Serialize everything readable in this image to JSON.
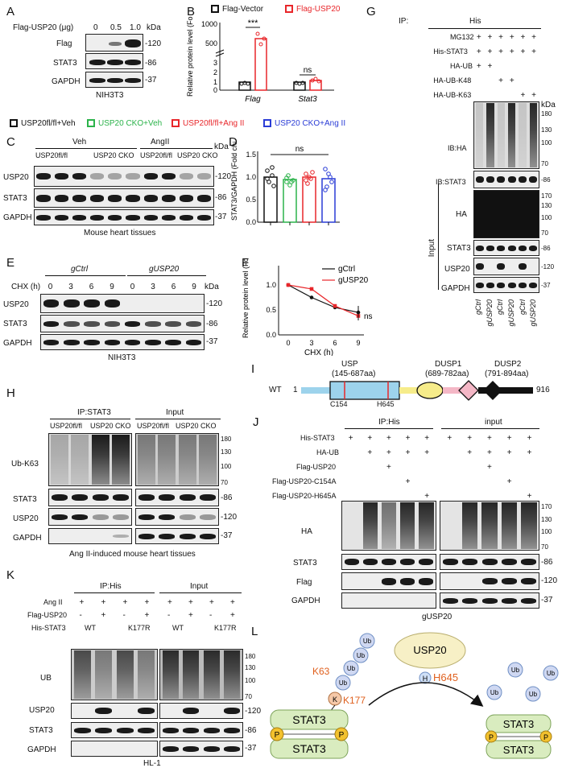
{
  "panels": {
    "A": "A",
    "B": "B",
    "C": "C",
    "D": "D",
    "E": "E",
    "F": "F",
    "G": "G",
    "H": "H",
    "I": "I",
    "J": "J",
    "K": "K",
    "L": "L"
  },
  "A": {
    "condition": "Flag-USP20 (μg)",
    "doses": [
      "0",
      "0.5",
      "1.0"
    ],
    "rows": [
      "Flag",
      "STAT3",
      "GAPDH"
    ],
    "mw": [
      "-120",
      "-86",
      "-37"
    ],
    "kda": "kDa",
    "cell": "NIH3T3"
  },
  "B": {
    "legend": [
      "Flag-Vector",
      "Flag-USP20"
    ],
    "ylabel": "Relative protein level (Fold change)",
    "groups": [
      "Flag",
      "Stat3"
    ],
    "sig": [
      "***",
      "ns"
    ],
    "ticks": [
      "0",
      "1",
      "2",
      "3",
      "500",
      "1000"
    ],
    "colors": {
      "vector": "#111111",
      "usp20": "#e8262a"
    }
  },
  "chart_data": {
    "type": "bar",
    "categories": [
      "Flag",
      "Stat3"
    ],
    "series": [
      {
        "name": "Flag-Vector",
        "values": [
          1.0,
          1.0
        ]
      },
      {
        "name": "Flag-USP20",
        "values": [
          680,
          1.4
        ]
      }
    ]
  },
  "groups_legend": [
    "USP20fl/fl+Veh",
    "USP20 CKO+Veh",
    "USP20fl/fl+Ang II",
    "USP20 CKO+Ang II"
  ],
  "C": {
    "treat": [
      "Veh",
      "AngII"
    ],
    "geno": [
      "USP20fl/fl",
      "USP20 CKO",
      "USP20fl/fl",
      "USP20 CKO"
    ],
    "rows": [
      "USP20",
      "STAT3",
      "GAPDH"
    ],
    "mw": [
      "-120",
      "-86",
      "-37"
    ],
    "kda": "kDa",
    "caption": "Mouse heart tissues"
  },
  "D": {
    "ylabel": "STAT3/GAPDH (Fold change)",
    "sig": "ns",
    "ticks": [
      "0.0",
      "0.5",
      "1.0",
      "1.5"
    ],
    "means": [
      1.0,
      0.95,
      1.0,
      0.97
    ]
  },
  "E": {
    "groups": [
      "gCtrl",
      "gUSP20"
    ],
    "chx": "CHX (h)",
    "times": [
      "0",
      "3",
      "6",
      "9",
      "0",
      "3",
      "6",
      "9"
    ],
    "rows": [
      "USP20",
      "STAT3",
      "GAPDH"
    ],
    "mw": [
      "-120",
      "-86",
      "-37"
    ],
    "kda": "kDa",
    "cell": "NIH3T3"
  },
  "F": {
    "ylabel": "Relative protein level (Fold change)",
    "xlabel": "CHX (h)",
    "legend": [
      "gCtrl",
      "gUSP20"
    ],
    "xticks": [
      "0",
      "3",
      "6",
      "9"
    ],
    "yticks": [
      "0.0",
      "0.5",
      "1.0"
    ],
    "sig": "ns",
    "gCtrl": [
      1.0,
      0.75,
      0.55,
      0.45
    ],
    "gUSP20": [
      1.0,
      0.92,
      0.58,
      0.38
    ]
  },
  "G": {
    "ip": "IP:",
    "ip_target": "His",
    "conds": [
      "MG132",
      "His-STAT3",
      "HA-UB",
      "HA-UB-K48",
      "HA-UB-K63"
    ],
    "marks": [
      [
        "+",
        "+",
        "+",
        "+",
        "+",
        "+"
      ],
      [
        "+",
        "+",
        "+",
        "+",
        "+",
        "+"
      ],
      [
        "+",
        "+",
        "",
        "",
        "",
        ""
      ],
      [
        "",
        "",
        "+",
        "+",
        "",
        ""
      ],
      [
        "",
        "",
        "",
        "",
        "+",
        "+"
      ]
    ],
    "rows": [
      "IB:HA",
      "IB:STAT3",
      "HA",
      "STAT3",
      "USP20",
      "GAPDH"
    ],
    "input": "Input",
    "mw_ha": [
      "180",
      "130",
      "100",
      "70"
    ],
    "mw_in": [
      "170",
      "130",
      "100",
      "70"
    ],
    "mw": [
      "-86",
      "-86",
      "-120",
      "-37"
    ],
    "kda": "kDa",
    "lanes": [
      "gCtrl",
      "gUSP20",
      "gCtrl",
      "gUSP20",
      "gCtrl",
      "gUSP20"
    ]
  },
  "H": {
    "ip": "IP:STAT3",
    "input": "Input",
    "geno": [
      "USP20fl/fl",
      "USP20 CKO",
      "USP20fl/fl",
      "USP20 CKO"
    ],
    "rows": [
      "Ub-K63",
      "STAT3",
      "USP20",
      "GAPDH"
    ],
    "mw": [
      "180",
      "130",
      "100",
      "70",
      "-86",
      "-120",
      "-37"
    ],
    "caption": "Ang II-induced mouse heart tissues"
  },
  "I": {
    "wt": "WT",
    "start": "1",
    "end": "916",
    "usp": "USP",
    "usp_range": "(145-687aa)",
    "dusp1": "DUSP1",
    "dusp1_range": "(689-782aa)",
    "dusp2": "DUSP2",
    "dusp2_range": "(791-894aa)",
    "c154": "C154",
    "h645": "H645"
  },
  "J": {
    "ip": "IP:His",
    "input": "input",
    "conds": [
      "His-STAT3",
      "HA-UB",
      "Flag-USP20",
      "Flag-USP20-C154A",
      "Flag-USP20-H645A"
    ],
    "marks": [
      [
        "+",
        "+",
        "+",
        "+",
        "+"
      ],
      [
        "",
        "+",
        "+",
        "+",
        "+"
      ],
      [
        "",
        "",
        "+",
        "",
        ""
      ],
      [
        "",
        "",
        "",
        "+",
        ""
      ],
      [
        "",
        "",
        "",
        "",
        "+"
      ]
    ],
    "rows": [
      "HA",
      "STAT3",
      "Flag",
      "GAPDH"
    ],
    "mw": [
      "170",
      "130",
      "100",
      "70",
      "-86",
      "-120",
      "-37"
    ],
    "caption": "gUSP20"
  },
  "K": {
    "ip": "IP:His",
    "input": "Input",
    "conds": [
      "Ang II",
      "Flag-USP20",
      "His-STAT3"
    ],
    "signs": [
      [
        "+",
        "+",
        "+",
        "+"
      ],
      [
        "-",
        "+",
        "-",
        "+"
      ]
    ],
    "variants": [
      "WT",
      "K177R"
    ],
    "rows": [
      "UB",
      "USP20",
      "STAT3",
      "GAPDH"
    ],
    "mw": [
      "180",
      "130",
      "100",
      "70",
      "-120",
      "-86",
      "-37"
    ],
    "caption": "HL-1"
  },
  "L": {
    "usp20": "USP20",
    "h645": "H645",
    "h": "H",
    "k63": "K63",
    "k177": "K177",
    "k": "K",
    "ub": "Ub",
    "stat3": "STAT3",
    "p": "P"
  }
}
